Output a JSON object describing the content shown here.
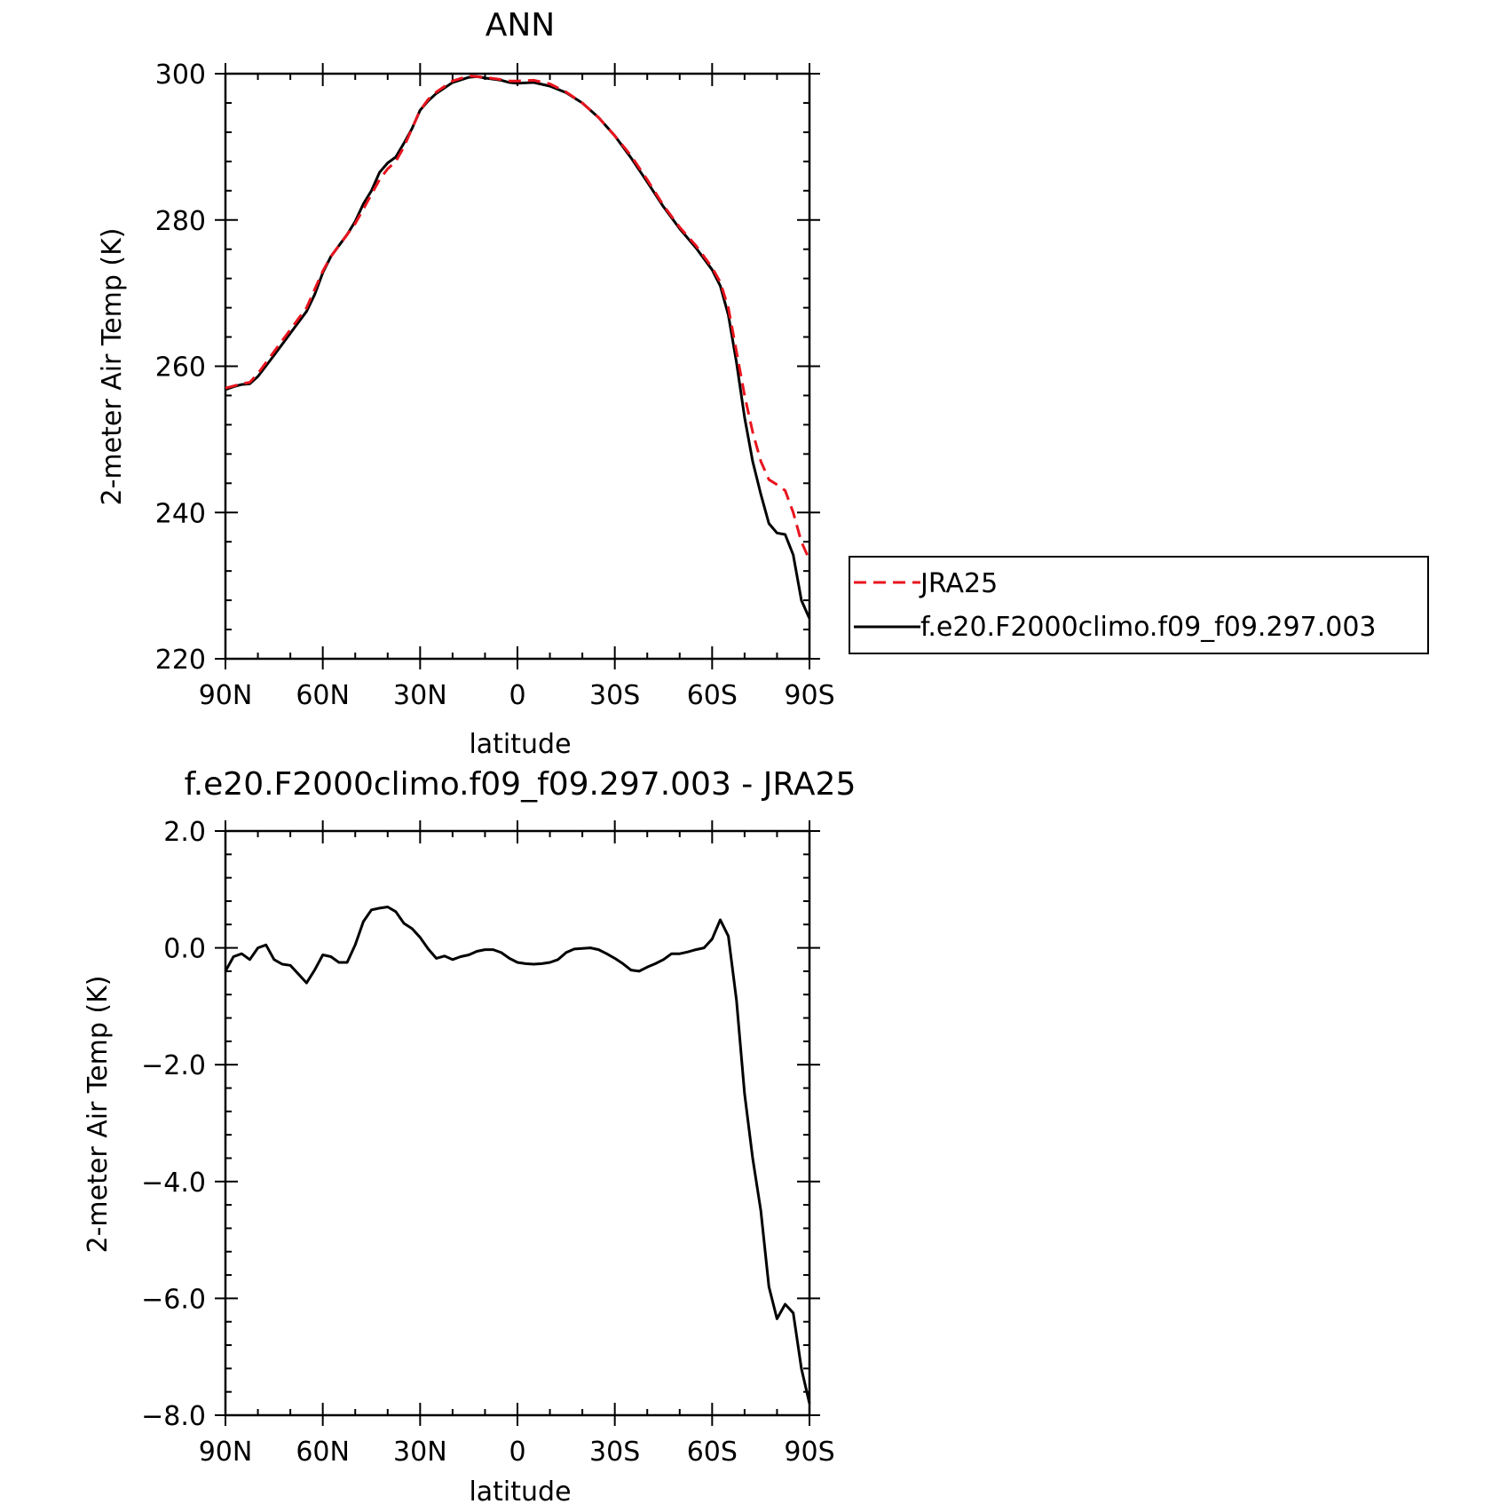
{
  "chart_data": [
    {
      "type": "line",
      "title": "ANN",
      "xlabel": "latitude",
      "ylabel": "2-meter Air Temp (K)",
      "xlim": [
        90,
        -90
      ],
      "ylim": [
        220,
        300
      ],
      "x_ticks": [
        90,
        60,
        30,
        0,
        -30,
        -60,
        -90
      ],
      "x_tick_labels": [
        "90N",
        "60N",
        "30N",
        "0",
        "30S",
        "60S",
        "90S"
      ],
      "y_ticks": [
        220,
        240,
        260,
        280,
        300
      ],
      "y_tick_labels": [
        "220",
        "240",
        "260",
        "280",
        "300"
      ],
      "legend": "right",
      "series": [
        {
          "name": "JRA25",
          "color": "#e8141e",
          "dash": "dashed",
          "x": [
            90,
            85,
            82.5,
            80,
            75,
            70,
            65,
            62.5,
            60,
            57.5,
            55,
            52.5,
            50,
            47.5,
            45,
            42.5,
            40,
            37.5,
            35,
            32.5,
            30,
            27.5,
            25,
            20,
            15,
            12.5,
            10,
            5,
            2.5,
            0,
            -5,
            -10,
            -15,
            -20,
            -25,
            -30,
            -35,
            -40,
            -45,
            -50,
            -55,
            -60,
            -62.5,
            -65,
            -67.5,
            -70,
            -72.5,
            -75,
            -77.5,
            -80,
            -82.5,
            -85,
            -87.5,
            -90
          ],
          "values": [
            257.0,
            257.6,
            257.8,
            259.0,
            262.0,
            265.0,
            268.0,
            270.5,
            273.0,
            275.0,
            276.5,
            278.0,
            279.5,
            281.5,
            283.5,
            285.5,
            287.0,
            288.0,
            290.0,
            292.5,
            295.0,
            296.5,
            297.5,
            299.0,
            299.7,
            299.6,
            299.5,
            299.2,
            299.0,
            299.0,
            299.1,
            298.6,
            297.5,
            296.0,
            294.0,
            291.5,
            288.8,
            285.5,
            282.0,
            279.0,
            276.5,
            273.5,
            271.5,
            268.0,
            262.0,
            256.0,
            251.0,
            247.0,
            244.5,
            243.8,
            243.0,
            240.0,
            236.0,
            233.5
          ]
        },
        {
          "name": "f.e20.F2000climo.f09_f09.297.003",
          "color": "#000000",
          "dash": "solid",
          "x": [
            90,
            87.5,
            85,
            82.5,
            80,
            75,
            70,
            65,
            62.5,
            60,
            57.5,
            55,
            52.5,
            50,
            47.5,
            45,
            42.5,
            40,
            37.5,
            35,
            32.5,
            30,
            27.5,
            25,
            20,
            15,
            12.5,
            10,
            5,
            2.5,
            0,
            -5,
            -10,
            -15,
            -20,
            -25,
            -30,
            -35,
            -40,
            -45,
            -50,
            -55,
            -60,
            -62.5,
            -65,
            -67.5,
            -70,
            -72.5,
            -75,
            -77.5,
            -80,
            -82.5,
            -85,
            -87.5,
            -90
          ],
          "values": [
            256.8,
            257.2,
            257.5,
            257.6,
            258.6,
            261.5,
            264.5,
            267.5,
            269.8,
            272.8,
            275.0,
            276.5,
            278.0,
            279.8,
            282.2,
            284.0,
            286.5,
            287.8,
            288.6,
            290.5,
            292.5,
            295.0,
            296.3,
            297.3,
            298.8,
            299.5,
            299.6,
            299.4,
            299.1,
            298.8,
            298.7,
            298.8,
            298.3,
            297.4,
            296.0,
            294.0,
            291.5,
            288.5,
            285.2,
            281.8,
            278.8,
            276.2,
            273.2,
            271.0,
            267.0,
            260.5,
            253.0,
            247.0,
            242.5,
            238.5,
            237.2,
            237.0,
            234.2,
            228.0,
            225.5
          ]
        }
      ]
    },
    {
      "type": "line",
      "title": "f.e20.F2000climo.f09_f09.297.003 - JRA25",
      "xlabel": "latitude",
      "ylabel": "2-meter Air Temp (K)",
      "xlim": [
        90,
        -90
      ],
      "ylim": [
        -8,
        2
      ],
      "x_ticks": [
        90,
        60,
        30,
        0,
        -30,
        -60,
        -90
      ],
      "x_tick_labels": [
        "90N",
        "60N",
        "30N",
        "0",
        "30S",
        "60S",
        "90S"
      ],
      "y_ticks": [
        2,
        0,
        -2,
        -4,
        -6,
        -8
      ],
      "y_tick_labels": [
        "2.0",
        "0.0",
        "−2.0",
        "−4.0",
        "−6.0",
        "−8.0"
      ],
      "series": [
        {
          "color": "#000000",
          "dash": "solid",
          "x": [
            90,
            87.5,
            85,
            82.5,
            80,
            77.5,
            75,
            72.5,
            70,
            67.5,
            65,
            62.5,
            60,
            57.5,
            55,
            52.5,
            50,
            47.5,
            45,
            42.5,
            40,
            37.5,
            35,
            32.5,
            30,
            27.5,
            25,
            22.5,
            20,
            17.5,
            15,
            12.5,
            10,
            7.5,
            5,
            2.5,
            0,
            -2.5,
            -5,
            -7.5,
            -10,
            -12.5,
            -15,
            -17.5,
            -20,
            -22.5,
            -25,
            -27.5,
            -30,
            -32.5,
            -35,
            -37.5,
            -40,
            -42.5,
            -45,
            -47.5,
            -50,
            -52.5,
            -55,
            -57.5,
            -60,
            -62.5,
            -65,
            -67.5,
            -70,
            -72.5,
            -75,
            -77.5,
            -80,
            -82.5,
            -85,
            -87.5,
            -90
          ],
          "values": [
            -0.4,
            -0.15,
            -0.1,
            -0.2,
            0.0,
            0.05,
            -0.2,
            -0.28,
            -0.3,
            -0.45,
            -0.6,
            -0.38,
            -0.12,
            -0.15,
            -0.25,
            -0.25,
            0.05,
            0.45,
            0.65,
            0.68,
            0.7,
            0.62,
            0.42,
            0.33,
            0.18,
            -0.02,
            -0.18,
            -0.14,
            -0.2,
            -0.15,
            -0.12,
            -0.06,
            -0.03,
            -0.03,
            -0.08,
            -0.18,
            -0.25,
            -0.27,
            -0.28,
            -0.27,
            -0.25,
            -0.2,
            -0.08,
            -0.02,
            -0.01,
            0.0,
            -0.03,
            -0.1,
            -0.18,
            -0.27,
            -0.38,
            -0.4,
            -0.33,
            -0.27,
            -0.2,
            -0.1,
            -0.1,
            -0.07,
            -0.03,
            0.0,
            0.15,
            0.48,
            0.2,
            -0.9,
            -2.5,
            -3.6,
            -4.5,
            -5.8,
            -6.35,
            -6.1,
            -6.25,
            -7.2,
            -7.8
          ]
        }
      ]
    }
  ]
}
